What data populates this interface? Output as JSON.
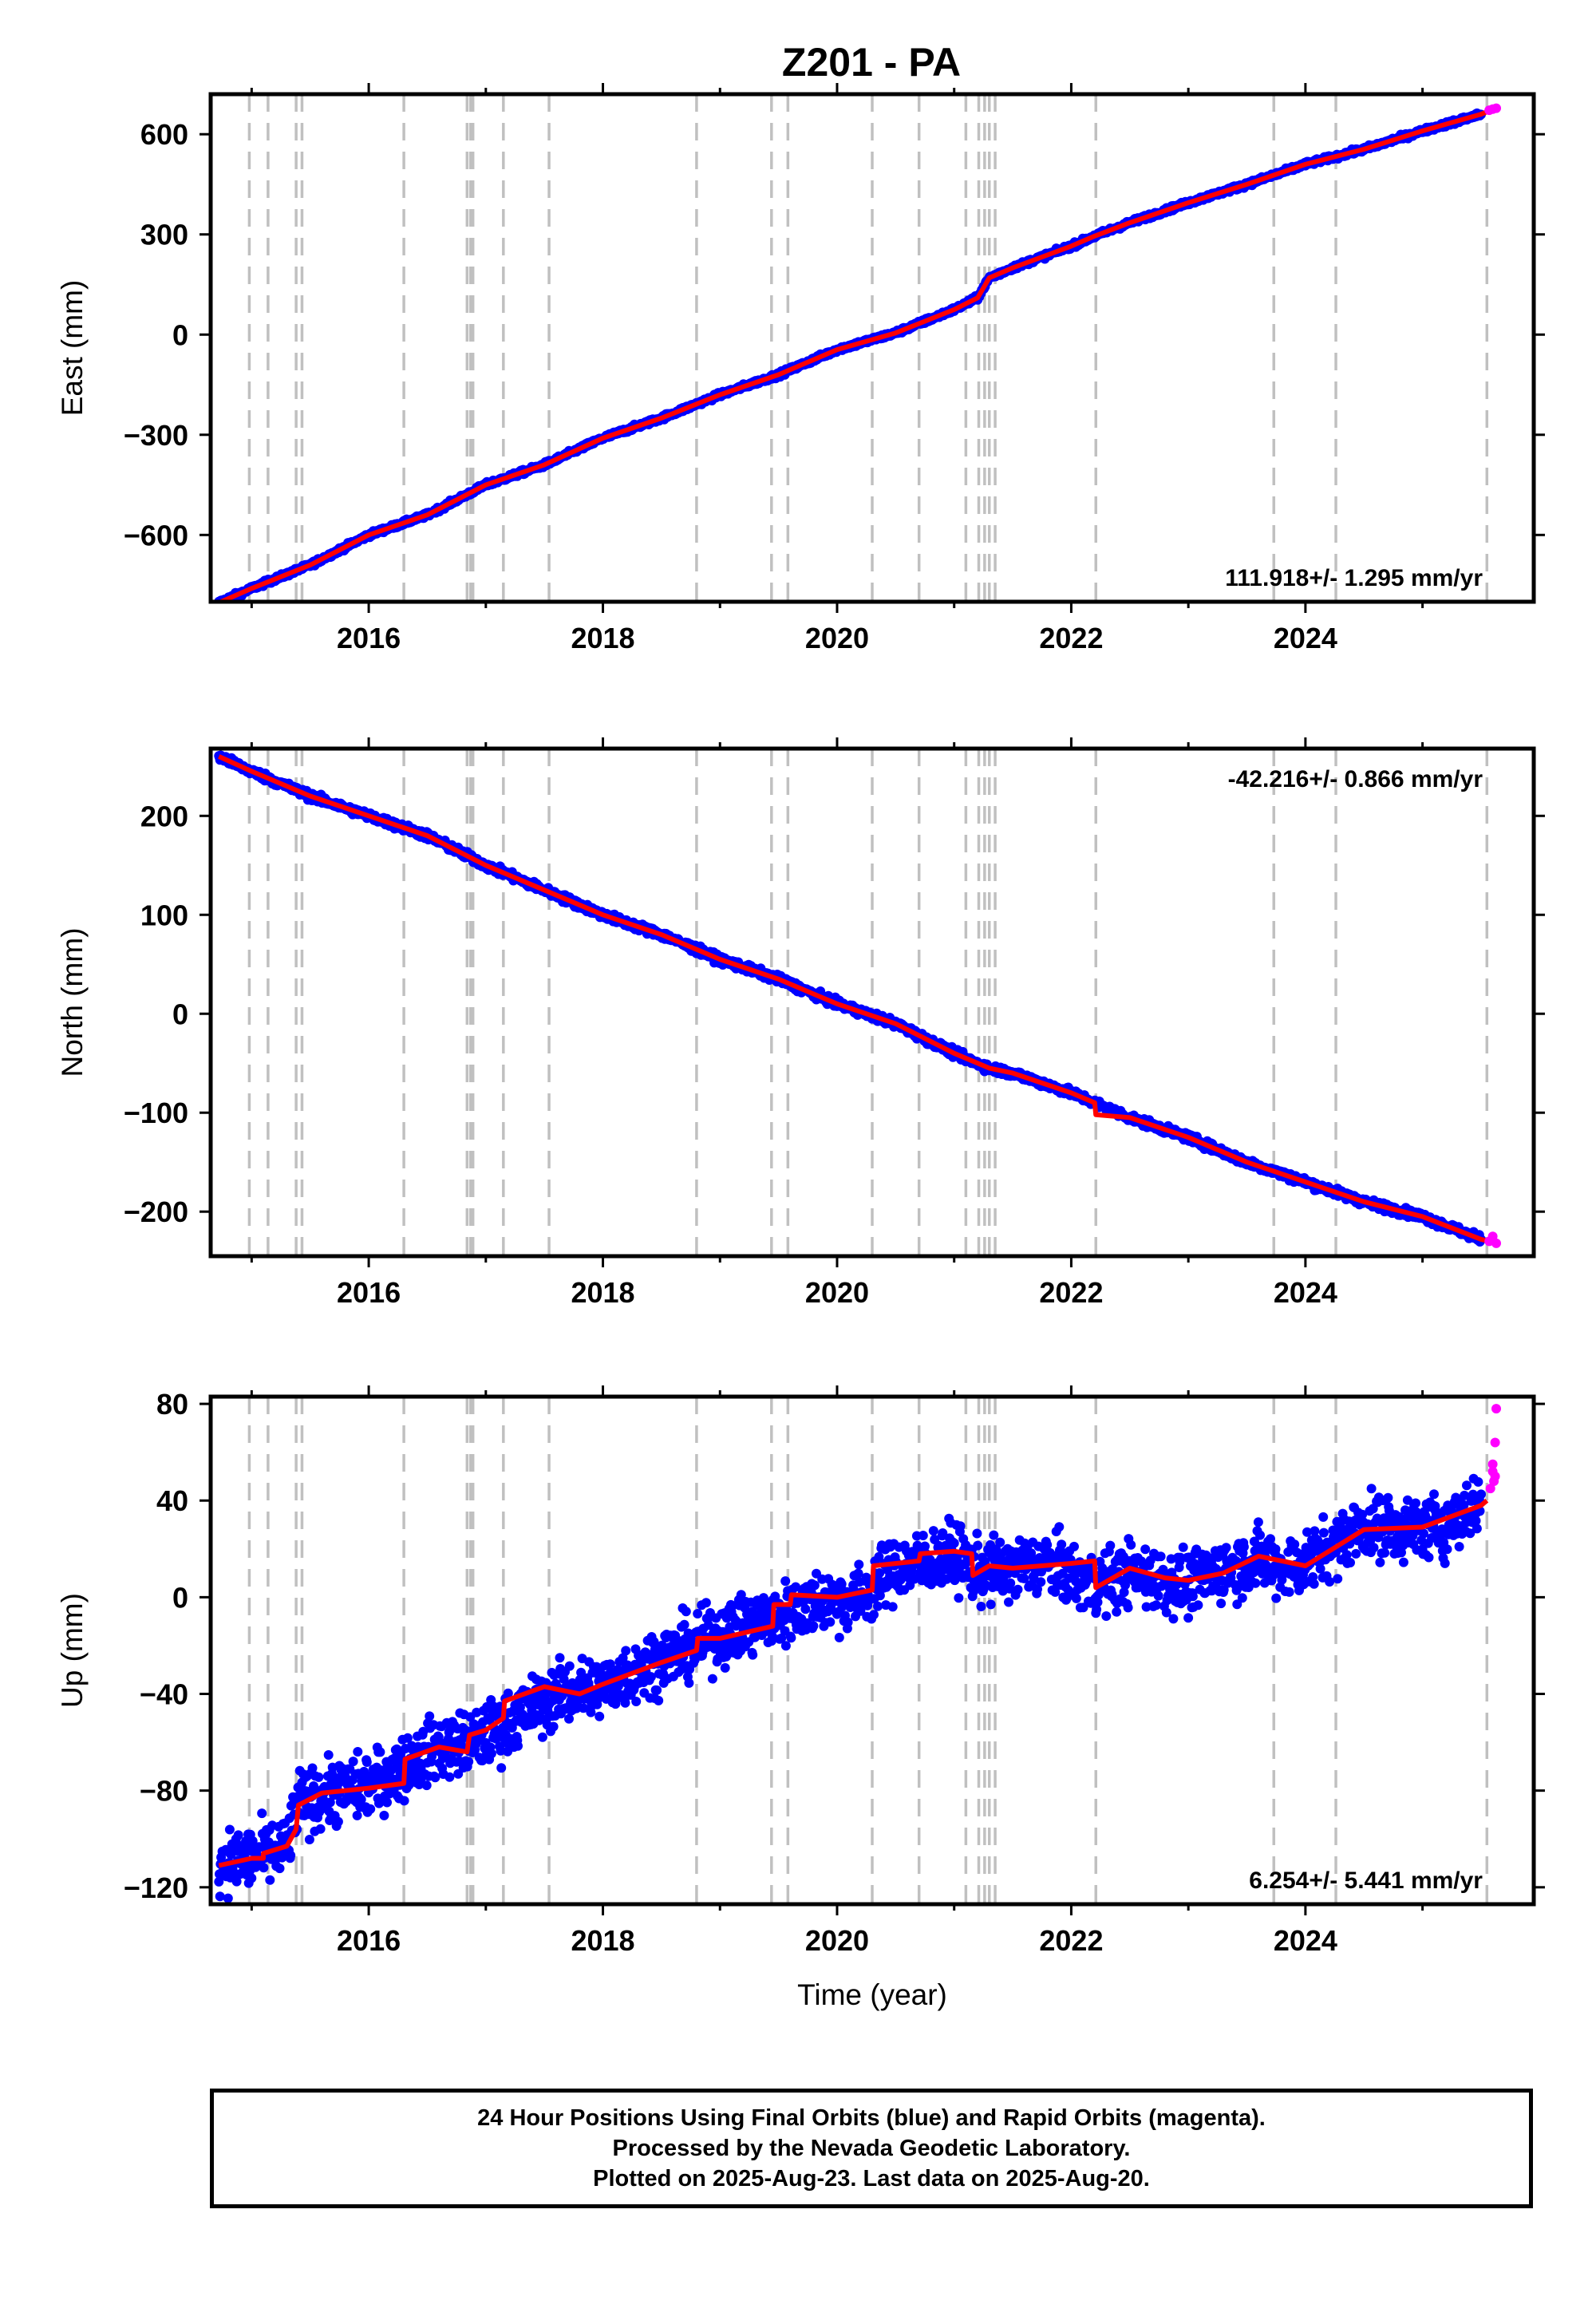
{
  "chart_data": [
    {
      "type": "scatter",
      "title": "Z201 - PA",
      "ylabel": "East (mm)",
      "xlabel": "",
      "xlim": [
        2014.65,
        2025.95
      ],
      "ylim": [
        -800,
        720
      ],
      "yticks": [
        600,
        300,
        0,
        -300,
        -600
      ],
      "ytick_labels": [
        "600",
        "300",
        "0",
        "−300",
        "−600"
      ],
      "xticks": [
        2016,
        2018,
        2020,
        2022,
        2024
      ],
      "rate_label": "111.918+/- 1.295 mm/yr",
      "rate_position": "bottom-right",
      "grid": false,
      "series": [
        {
          "name": "Final Orbits",
          "color": "#0000ff",
          "mark": "dot",
          "x": [
            2014.72,
            2015.0,
            2015.5,
            2016.0,
            2016.5,
            2017.0,
            2017.5,
            2018.0,
            2018.5,
            2019.0,
            2019.5,
            2020.0,
            2020.5,
            2021.0,
            2021.2,
            2021.3,
            2021.5,
            2022.0,
            2022.2,
            2022.5,
            2023.0,
            2023.5,
            2024.0,
            2024.5,
            2025.0,
            2025.5
          ],
          "y": [
            -803,
            -760,
            -690,
            -600,
            -540,
            -450,
            -390,
            -310,
            -250,
            -180,
            -120,
            -45,
            5,
            75,
            110,
            170,
            200,
            265,
            295,
            335,
            395,
            450,
            510,
            555,
            610,
            660
          ]
        },
        {
          "name": "Rapid Orbits",
          "color": "#ff00ff",
          "mark": "dot",
          "x": [
            2025.57,
            2025.6,
            2025.63
          ],
          "y": [
            672,
            675,
            678
          ]
        },
        {
          "name": "Model fit",
          "color": "#ff0000",
          "mark": "line",
          "x": [
            2014.72,
            2015.0,
            2015.5,
            2016.0,
            2016.5,
            2017.0,
            2017.5,
            2018.0,
            2018.5,
            2019.0,
            2019.5,
            2020.0,
            2020.5,
            2021.0,
            2021.2,
            2021.3,
            2021.5,
            2022.0,
            2022.2,
            2022.5,
            2023.0,
            2023.5,
            2024.0,
            2024.5,
            2025.0,
            2025.5,
            2025.63
          ],
          "y": [
            -803,
            -760,
            -690,
            -600,
            -540,
            -450,
            -390,
            -310,
            -250,
            -180,
            -120,
            -45,
            5,
            75,
            110,
            170,
            200,
            265,
            295,
            335,
            395,
            450,
            510,
            555,
            610,
            660,
            678
          ]
        }
      ]
    },
    {
      "type": "scatter",
      "title": "",
      "ylabel": "North (mm)",
      "xlabel": "",
      "xlim": [
        2014.65,
        2025.95
      ],
      "ylim": [
        -245,
        268
      ],
      "yticks": [
        200,
        100,
        0,
        -100,
        -200
      ],
      "ytick_labels": [
        "200",
        "100",
        "0",
        "−100",
        "−200"
      ],
      "xticks": [
        2016,
        2018,
        2020,
        2022,
        2024
      ],
      "rate_label": "-42.216+/- 0.866 mm/yr",
      "rate_position": "top-right",
      "grid": false,
      "series": [
        {
          "name": "Final Orbits",
          "color": "#0000ff",
          "mark": "dot",
          "x": [
            2014.72,
            2015.0,
            2015.5,
            2016.0,
            2016.5,
            2017.0,
            2017.5,
            2018.0,
            2018.5,
            2019.0,
            2019.5,
            2020.0,
            2020.5,
            2021.0,
            2021.3,
            2021.5,
            2022.0,
            2022.2,
            2022.5,
            2023.0,
            2023.5,
            2024.0,
            2024.5,
            2025.0,
            2025.5
          ],
          "y": [
            260,
            245,
            220,
            200,
            180,
            150,
            125,
            100,
            80,
            55,
            35,
            10,
            -10,
            -40,
            -55,
            -60,
            -80,
            -90,
            -105,
            -125,
            -150,
            -170,
            -190,
            -205,
            -228
          ]
        },
        {
          "name": "Rapid Orbits",
          "color": "#ff00ff",
          "mark": "dot",
          "x": [
            2025.57,
            2025.6,
            2025.63
          ],
          "y": [
            -230,
            -225,
            -232
          ]
        },
        {
          "name": "Model fit",
          "color": "#ff0000",
          "mark": "line",
          "x": [
            2014.72,
            2015.0,
            2015.5,
            2016.0,
            2016.5,
            2017.0,
            2017.5,
            2018.0,
            2018.5,
            2019.0,
            2019.5,
            2020.0,
            2020.5,
            2021.0,
            2021.3,
            2021.5,
            2022.0,
            2022.2,
            2022.21,
            2022.5,
            2023.0,
            2023.5,
            2024.0,
            2024.5,
            2025.0,
            2025.5,
            2025.63
          ],
          "y": [
            260,
            245,
            220,
            200,
            180,
            150,
            125,
            100,
            80,
            55,
            35,
            10,
            -10,
            -40,
            -55,
            -60,
            -80,
            -90,
            -102,
            -105,
            -125,
            -150,
            -170,
            -190,
            -205,
            -228,
            -232
          ]
        }
      ]
    },
    {
      "type": "scatter",
      "title": "",
      "ylabel": "Up (mm)",
      "xlabel": "Time (year)",
      "xlim": [
        2014.65,
        2025.95
      ],
      "ylim": [
        -127,
        83
      ],
      "yticks": [
        80,
        40,
        0,
        -40,
        -80,
        -120
      ],
      "ytick_labels": [
        "80",
        "40",
        "0",
        "−40",
        "−80",
        "−120"
      ],
      "xticks": [
        2016,
        2018,
        2020,
        2022,
        2024
      ],
      "rate_label": "6.254+/- 5.441 mm/yr",
      "rate_position": "bottom-right",
      "grid": false,
      "series": [
        {
          "name": "Final Orbits",
          "color": "#0000ff",
          "mark": "dot",
          "x": [
            2014.72,
            2015.0,
            2015.3,
            2015.4,
            2015.6,
            2016.0,
            2016.3,
            2016.6,
            2016.9,
            2017.2,
            2017.6,
            2018.0,
            2018.5,
            2018.8,
            2019.0,
            2019.5,
            2019.8,
            2020.2,
            2020.5,
            2020.8,
            2021.0,
            2021.2,
            2021.5,
            2021.8,
            2022.2,
            2022.5,
            2022.8,
            2023.0,
            2023.3,
            2023.6,
            2023.9,
            2024.2,
            2024.5,
            2024.8,
            2025.2,
            2025.5
          ],
          "y": [
            -110,
            -108,
            -104,
            -85,
            -82,
            -78,
            -70,
            -62,
            -60,
            -52,
            -40,
            -37,
            -25,
            -20,
            -15,
            -8,
            -2,
            0,
            12,
            15,
            18,
            10,
            12,
            14,
            5,
            10,
            7,
            5,
            12,
            15,
            12,
            20,
            30,
            28,
            30,
            40
          ]
        },
        {
          "name": "Rapid Orbits",
          "color": "#ff00ff",
          "mark": "dot",
          "x": [
            2025.58,
            2025.6,
            2025.6,
            2025.61,
            2025.62,
            2025.62,
            2025.63
          ],
          "y": [
            45,
            52,
            55,
            48,
            64,
            50,
            78
          ]
        },
        {
          "name": "Model fit",
          "color": "#ff0000",
          "mark": "line",
          "x": [
            2014.72,
            2015.0,
            2015.1,
            2015.1,
            2015.3,
            2015.38,
            2015.4,
            2015.6,
            2016.0,
            2016.3,
            2016.31,
            2016.6,
            2016.84,
            2016.86,
            2017.0,
            2017.15,
            2017.16,
            2017.5,
            2017.8,
            2018.0,
            2018.5,
            2018.8,
            2018.81,
            2019.0,
            2019.45,
            2019.46,
            2019.6,
            2019.61,
            2020.0,
            2020.3,
            2020.31,
            2020.7,
            2020.71,
            2021.0,
            2021.15,
            2021.16,
            2021.3,
            2021.5,
            2022.0,
            2022.2,
            2022.21,
            2022.5,
            2022.8,
            2023.0,
            2023.3,
            2023.6,
            2024.0,
            2024.5,
            2025.0,
            2025.5,
            2025.55
          ],
          "y": [
            -111,
            -108,
            -108,
            -106,
            -103,
            -96,
            -86,
            -81,
            -79,
            -77,
            -67,
            -62,
            -64,
            -57,
            -55,
            -50,
            -43,
            -37,
            -40,
            -36,
            -27,
            -22,
            -17,
            -17,
            -12,
            -3,
            -3,
            1,
            0,
            3,
            13,
            15,
            18,
            19,
            18,
            9,
            13,
            12,
            14,
            15,
            4,
            12,
            8,
            7,
            10,
            17,
            13,
            28,
            29,
            38,
            40
          ]
        }
      ]
    }
  ],
  "footer": {
    "line1": "24 Hour Positions Using Final Orbits (blue) and Rapid Orbits (magenta).",
    "line2": "Processed by the Nevada Geodetic Laboratory.",
    "line3": "Plotted on 2025-Aug-23. Last data on 2025-Aug-20."
  },
  "colors": {
    "final": "#0000ff",
    "rapid": "#ff00ff",
    "fit": "#ff0000",
    "event_line": "#c0c0c0"
  },
  "event_lines": [
    2014.98,
    2015.14,
    2015.38,
    2015.43,
    2016.3,
    2016.84,
    2016.87,
    2016.89,
    2017.15,
    2017.54,
    2018.8,
    2019.44,
    2019.58,
    2020.3,
    2020.7,
    2021.1,
    2021.21,
    2021.26,
    2021.3,
    2021.35,
    2022.21,
    2023.73,
    2024.26,
    2025.55
  ]
}
